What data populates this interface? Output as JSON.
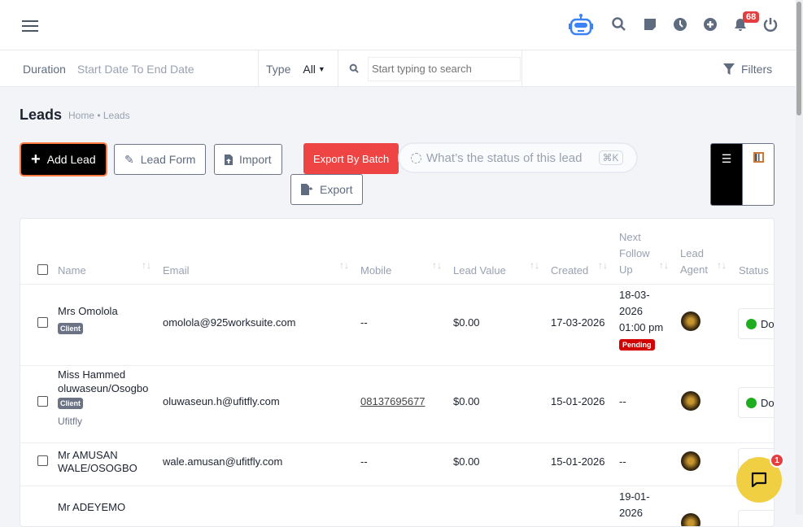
{
  "header": {
    "notifications_count": "68",
    "icons": [
      "menu-icon",
      "robot-icon",
      "search-icon",
      "sticky-note-icon",
      "clock-icon",
      "plus-circle-icon",
      "bell-icon",
      "power-icon"
    ]
  },
  "filters": {
    "duration_label": "Duration",
    "duration_placeholder": "Start Date To End Date",
    "type_label": "Type",
    "type_value": "All",
    "search_placeholder": "Start typing to search",
    "filters_label": "Filters"
  },
  "page": {
    "title": "Leads",
    "breadcrumb": "Home • Leads"
  },
  "toolbar": {
    "add_lead": "Add Lead",
    "lead_form": "Lead Form",
    "import": "Import",
    "export_batch": "Export By Batch",
    "export": "Export",
    "ask_placeholder": "What’s the status of this lead",
    "ask_shortcut": "⌘K"
  },
  "colors": {
    "accent_red": "#ef4444",
    "add_lead_border": "#ff7a45",
    "chat": "#f0cf43",
    "status_green": "#1fad1f"
  },
  "table": {
    "headers": {
      "name": "Name",
      "email": "Email",
      "mobile": "Mobile",
      "lead_value": "Lead Value",
      "created": "Created",
      "next_follow_up_1": "Next",
      "next_follow_up_2": "Follow",
      "next_follow_up_3": "Up",
      "lead_agent_1": "Lead",
      "lead_agent_2": "Agent",
      "status": "Status"
    },
    "rows": [
      {
        "name": "Mrs Omolola",
        "tag": "Client",
        "company": "",
        "email": "omolola@925worksuite.com",
        "mobile": "--",
        "value": "$0.00",
        "created": "17-03-2026",
        "follow_1": "18-03-",
        "follow_2": "2026",
        "follow_3": "01:00 pm",
        "follow_badge": "Pending",
        "status": "Done"
      },
      {
        "name_1": "Miss Hammed",
        "name_2": "oluwaseun/Osogbo",
        "tag": "Client",
        "company": "Ufitfly",
        "email": "oluwaseun.h@ufitfly.com",
        "mobile": "08137695677",
        "value": "$0.00",
        "created": "15-01-2026",
        "follow": "--",
        "status": "Done"
      },
      {
        "name_1": "Mr AMUSAN",
        "name_2": "WALE/OSOGBO",
        "email": "wale.amusan@ufitfly.com",
        "mobile": "--",
        "value": "$0.00",
        "created": "15-01-2026",
        "follow": "--"
      },
      {
        "name": "Mr ADEYEMO",
        "follow_1": "19-01-",
        "follow_2": "2026"
      }
    ]
  },
  "chat": {
    "unread": "1"
  }
}
